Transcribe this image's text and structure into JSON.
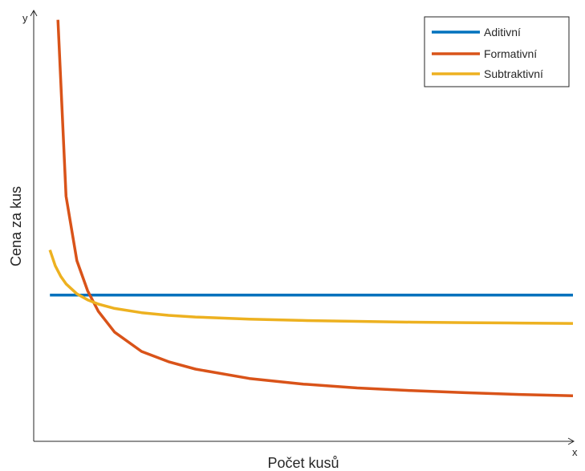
{
  "chart_data": {
    "type": "line",
    "title": "",
    "xlabel": "Počet kusů",
    "ylabel": "Cena za kus",
    "x_axis_end_label": "x",
    "y_axis_end_label": "y",
    "ticks": "none",
    "grid": false,
    "legend_position": "top-right",
    "xlim": [
      0,
      100
    ],
    "ylim": [
      0,
      100
    ],
    "series": [
      {
        "name": "Aditivní",
        "color": "#0072BD",
        "x": [
          3,
          100
        ],
        "y": [
          34,
          34
        ]
      },
      {
        "name": "Formativní",
        "color": "#D95319",
        "x": [
          4.5,
          6,
          8,
          10,
          12,
          15,
          20,
          25,
          30,
          40,
          50,
          60,
          70,
          80,
          90,
          100
        ],
        "y": [
          98,
          57,
          42,
          35,
          30.2,
          25.4,
          20.9,
          18.5,
          16.8,
          14.6,
          13.3,
          12.4,
          11.8,
          11.3,
          10.9,
          10.6
        ]
      },
      {
        "name": "Subtraktivní",
        "color": "#EDB120",
        "x": [
          3,
          4,
          5,
          6,
          8,
          10,
          12,
          15,
          20,
          25,
          30,
          40,
          50,
          60,
          70,
          80,
          90,
          100
        ],
        "y": [
          44.5,
          40.8,
          38.4,
          36.6,
          34.3,
          32.9,
          31.9,
          30.9,
          29.9,
          29.3,
          28.9,
          28.4,
          28.1,
          27.9,
          27.7,
          27.6,
          27.5,
          27.4
        ]
      }
    ]
  }
}
